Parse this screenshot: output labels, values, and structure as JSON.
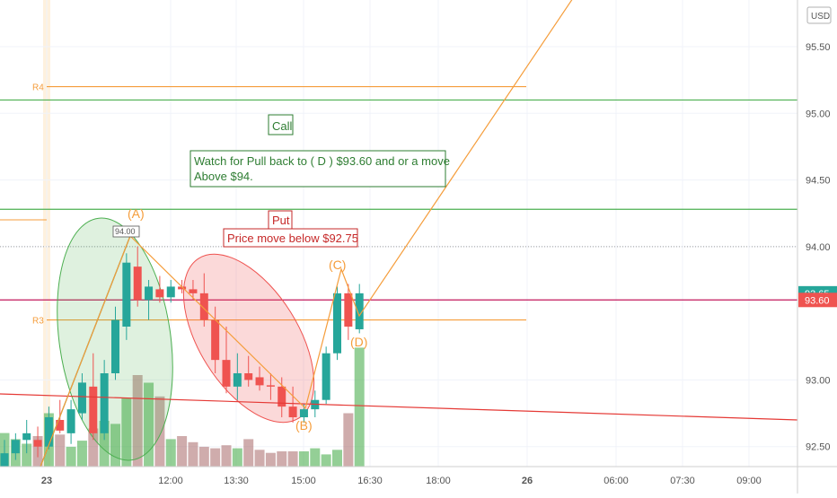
{
  "currency_button": "USD",
  "chart_data": {
    "type": "candlestick",
    "x_ticks": [
      "23",
      "12:00",
      "13:30",
      "15:00",
      "16:30",
      "18:00",
      "26",
      "06:00",
      "07:30",
      "09:00"
    ],
    "y_ticks": [
      "95.50",
      "95.00",
      "94.50",
      "94.00",
      "93.00",
      "92.50"
    ],
    "ylim": [
      92.35,
      95.85
    ],
    "price_badges": [
      {
        "label": "93.65",
        "value": 93.65,
        "color": "#26a69a"
      },
      {
        "label": "93.60",
        "value": 93.6,
        "color": "#ef5350"
      }
    ],
    "candles": [
      {
        "o": 92.35,
        "h": 92.55,
        "l": 92.35,
        "c": 92.45
      },
      {
        "o": 92.45,
        "h": 92.6,
        "l": 92.4,
        "c": 92.55
      },
      {
        "o": 92.55,
        "h": 92.7,
        "l": 92.45,
        "c": 92.6
      },
      {
        "o": 92.55,
        "h": 92.65,
        "l": 92.42,
        "c": 92.5
      },
      {
        "o": 92.5,
        "h": 92.8,
        "l": 92.48,
        "c": 92.72
      },
      {
        "o": 92.7,
        "h": 92.85,
        "l": 92.6,
        "c": 92.62
      },
      {
        "o": 92.6,
        "h": 92.85,
        "l": 92.52,
        "c": 92.78
      },
      {
        "o": 92.75,
        "h": 93.05,
        "l": 92.7,
        "c": 92.98
      },
      {
        "o": 92.95,
        "h": 93.2,
        "l": 92.55,
        "c": 92.6
      },
      {
        "o": 92.6,
        "h": 93.15,
        "l": 92.55,
        "c": 93.05
      },
      {
        "o": 93.05,
        "h": 93.55,
        "l": 93.0,
        "c": 93.45
      },
      {
        "o": 93.4,
        "h": 93.95,
        "l": 93.3,
        "c": 93.88
      },
      {
        "o": 93.85,
        "h": 94.0,
        "l": 93.55,
        "c": 93.6
      },
      {
        "o": 93.6,
        "h": 93.75,
        "l": 93.45,
        "c": 93.7
      },
      {
        "o": 93.68,
        "h": 93.78,
        "l": 93.58,
        "c": 93.62
      },
      {
        "o": 93.62,
        "h": 93.75,
        "l": 93.58,
        "c": 93.7
      },
      {
        "o": 93.7,
        "h": 93.75,
        "l": 93.65,
        "c": 93.68
      },
      {
        "o": 93.68,
        "h": 93.75,
        "l": 93.6,
        "c": 93.65
      },
      {
        "o": 93.65,
        "h": 93.8,
        "l": 93.4,
        "c": 93.45
      },
      {
        "o": 93.45,
        "h": 93.55,
        "l": 93.05,
        "c": 93.15
      },
      {
        "o": 93.15,
        "h": 93.4,
        "l": 92.9,
        "c": 92.95
      },
      {
        "o": 92.95,
        "h": 93.2,
        "l": 92.85,
        "c": 93.05
      },
      {
        "o": 93.05,
        "h": 93.18,
        "l": 92.95,
        "c": 93.0
      },
      {
        "o": 93.02,
        "h": 93.1,
        "l": 92.92,
        "c": 92.96
      },
      {
        "o": 92.96,
        "h": 93.05,
        "l": 92.85,
        "c": 92.95
      },
      {
        "o": 92.95,
        "h": 93.02,
        "l": 92.72,
        "c": 92.8
      },
      {
        "o": 92.8,
        "h": 92.95,
        "l": 92.68,
        "c": 92.72
      },
      {
        "o": 92.72,
        "h": 92.82,
        "l": 92.68,
        "c": 92.78
      },
      {
        "o": 92.78,
        "h": 92.92,
        "l": 92.72,
        "c": 92.85
      },
      {
        "o": 92.85,
        "h": 93.25,
        "l": 92.82,
        "c": 93.2
      },
      {
        "o": 93.2,
        "h": 93.7,
        "l": 93.15,
        "c": 93.65
      },
      {
        "o": 93.65,
        "h": 93.72,
        "l": 93.3,
        "c": 93.4
      },
      {
        "o": 93.38,
        "h": 93.72,
        "l": 93.35,
        "c": 93.65
      }
    ],
    "volumes": [
      0.22,
      0.18,
      0.15,
      0.2,
      0.35,
      0.21,
      0.13,
      0.17,
      0.25,
      0.3,
      0.28,
      0.45,
      0.6,
      0.55,
      0.46,
      0.18,
      0.2,
      0.16,
      0.13,
      0.12,
      0.14,
      0.12,
      0.18,
      0.11,
      0.09,
      0.1,
      0.1,
      0.1,
      0.12,
      0.08,
      0.11,
      0.35,
      0.78
    ],
    "horizontal_levels": [
      {
        "label": "R4",
        "value": 95.2,
        "color": "#f59d3b"
      },
      {
        "label": "R3",
        "value": 93.45,
        "color": "#f59d3b"
      },
      {
        "label": "",
        "value": 95.1,
        "color": "#4caf50"
      },
      {
        "label": "",
        "value": 94.28,
        "color": "#4caf50"
      },
      {
        "label": "",
        "value": 93.6,
        "color": "#c2185b"
      }
    ],
    "annotations": [
      {
        "text": "Call",
        "color": "#2e7d32"
      },
      {
        "text": "Watch for Pull back to ( D )  $93.60 and or a move",
        "color": "#2e7d32"
      },
      {
        "text": "Above $94.",
        "color": "#2e7d32"
      },
      {
        "text": "Put",
        "color": "#c62828"
      },
      {
        "text": "Price move below $92.75",
        "color": "#c62828"
      },
      {
        "text": "94.00",
        "color": "#555555"
      }
    ],
    "wave_labels": [
      "(A)",
      "(B)",
      "(C)",
      "(D)"
    ]
  }
}
